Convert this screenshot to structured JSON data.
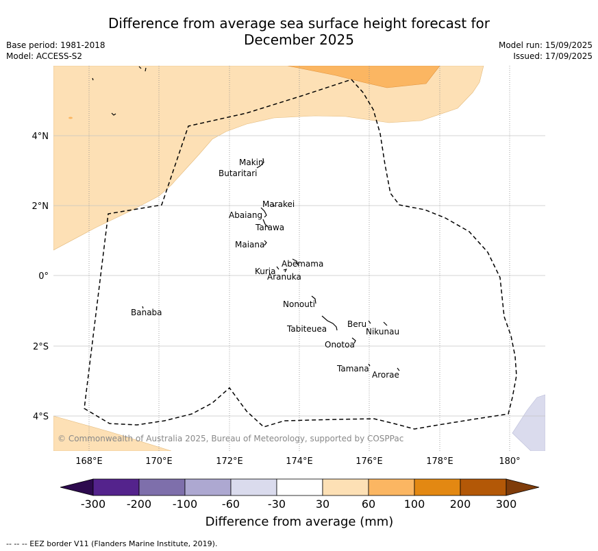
{
  "title_line1": "Difference from average sea surface height forecast for",
  "title_line2": "December 2025",
  "base_period": "Base period: 1981-2018",
  "model": "Model: ACCESS-S2",
  "model_run": "Model run: 15/09/2025",
  "issued": "Issued: 17/09/2025",
  "copyright": "© Commonwealth of Australia 2025, Bureau of Meteorology, supported by COSPPac",
  "lon_ticks": [
    "168°E",
    "170°E",
    "172°E",
    "174°E",
    "176°E",
    "178°E",
    "180°"
  ],
  "lat_ticks": [
    "4°N",
    "2°N",
    "0°",
    "2°S",
    "4°S"
  ],
  "islands": [
    "Makin",
    "Butaritari",
    "Marakei",
    "Abaiang",
    "Tarawa",
    "Maiana",
    "Abemama",
    "Kuria",
    "Aranuka",
    "Nonouti",
    "Banaba",
    "Tabiteuea",
    "Beru",
    "Nikunau",
    "Onotoa",
    "Tamana",
    "Arorae"
  ],
  "colorbar": {
    "labels": [
      "-300",
      "-200",
      "-100",
      "-60",
      "-30",
      "30",
      "60",
      "100",
      "200",
      "300"
    ],
    "colors": [
      "#2d0a4e",
      "#54238c",
      "#7e6fab",
      "#ada8d1",
      "#dadbed",
      "#ffffff",
      "#fde0b5",
      "#fbb662",
      "#e38812",
      "#b35807",
      "#7f3c0a"
    ],
    "title": "Difference from average (mm)"
  },
  "footer": "--  --  -- EEZ border V11 (Flanders Marine Institute, 2019)."
}
